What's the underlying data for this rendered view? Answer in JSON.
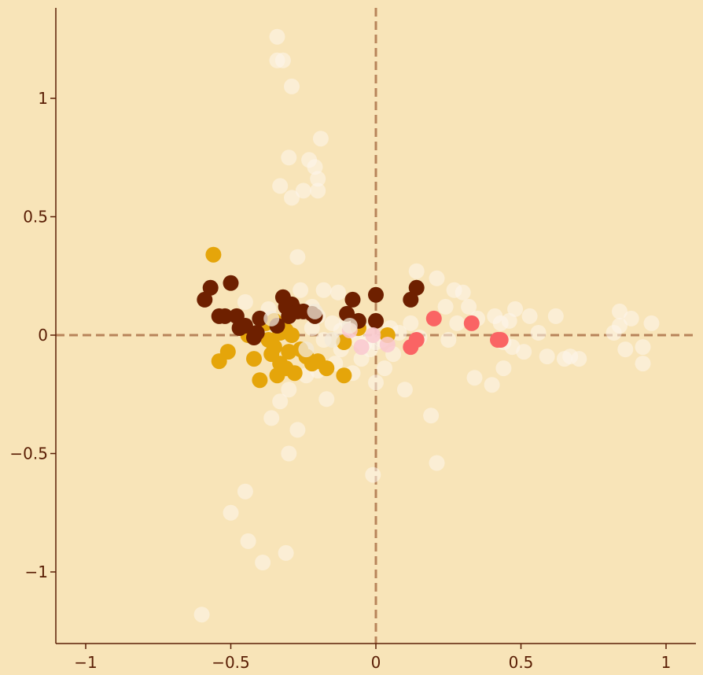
{
  "chart_data": {
    "type": "scatter",
    "title": "",
    "xlabel": "",
    "ylabel": "",
    "xlim": [
      -1.1,
      1.1
    ],
    "ylim": [
      -1.3,
      1.38
    ],
    "grid": false,
    "reference_lines": {
      "x": 0,
      "y": 0
    },
    "x_ticks": [
      {
        "value": -1,
        "label": "−1"
      },
      {
        "value": -0.5,
        "label": "−0.5"
      },
      {
        "value": 0,
        "label": "0"
      },
      {
        "value": 0.5,
        "label": "0.5"
      },
      {
        "value": 1,
        "label": "1"
      }
    ],
    "y_ticks": [
      {
        "value": 1,
        "label": "1"
      },
      {
        "value": 0.5,
        "label": "0.5"
      },
      {
        "value": 0,
        "label": "0"
      },
      {
        "value": -0.5,
        "label": "−0.5"
      },
      {
        "value": -1,
        "label": "−1"
      }
    ],
    "colors": {
      "background": "#f8e4b8",
      "axis": "#5a1e05",
      "reference_line": "#b8845a"
    },
    "series": [
      {
        "color": "#fdf6ec",
        "opacity": 0.55,
        "points": [
          [
            -0.34,
            1.26
          ],
          [
            -0.34,
            1.16
          ],
          [
            -0.32,
            1.16
          ],
          [
            -0.29,
            1.05
          ],
          [
            -0.19,
            0.83
          ],
          [
            -0.3,
            0.75
          ],
          [
            -0.23,
            0.74
          ],
          [
            -0.21,
            0.71
          ],
          [
            -0.2,
            0.66
          ],
          [
            -0.33,
            0.63
          ],
          [
            -0.25,
            0.61
          ],
          [
            -0.29,
            0.58
          ],
          [
            -0.2,
            0.61
          ],
          [
            -0.27,
            0.33
          ],
          [
            -0.26,
            0.19
          ],
          [
            -0.18,
            0.19
          ],
          [
            -0.13,
            0.18
          ],
          [
            -0.45,
            0.14
          ],
          [
            -0.37,
            0.11
          ],
          [
            -0.22,
            0.12
          ],
          [
            -0.2,
            0.08
          ],
          [
            -0.15,
            0.05
          ],
          [
            -0.12,
            0.02
          ],
          [
            -0.1,
            0.06
          ],
          [
            -0.08,
            0.02
          ],
          [
            -0.06,
            -0.02
          ],
          [
            -0.04,
            -0.04
          ],
          [
            -0.02,
            -0.06
          ],
          [
            0.02,
            -0.02
          ],
          [
            0.05,
            0.03
          ],
          [
            0.08,
            0.01
          ],
          [
            0.12,
            0.05
          ],
          [
            0.14,
            0.27
          ],
          [
            0.21,
            0.24
          ],
          [
            0.24,
            0.12
          ],
          [
            0.27,
            0.19
          ],
          [
            0.3,
            0.18
          ],
          [
            0.32,
            0.12
          ],
          [
            0.28,
            0.05
          ],
          [
            0.25,
            -0.02
          ],
          [
            0.35,
            0.07
          ],
          [
            0.41,
            0.08
          ],
          [
            0.43,
            0.05
          ],
          [
            0.46,
            0.06
          ],
          [
            0.48,
            0.11
          ],
          [
            0.53,
            0.08
          ],
          [
            0.56,
            0.01
          ],
          [
            0.62,
            0.08
          ],
          [
            0.44,
            -0.03
          ],
          [
            0.47,
            -0.05
          ],
          [
            0.51,
            -0.07
          ],
          [
            0.59,
            -0.09
          ],
          [
            0.65,
            -0.1
          ],
          [
            0.67,
            -0.09
          ],
          [
            0.7,
            -0.1
          ],
          [
            0.44,
            -0.14
          ],
          [
            0.34,
            -0.18
          ],
          [
            0.4,
            -0.21
          ],
          [
            0.1,
            -0.23
          ],
          [
            0.19,
            -0.34
          ],
          [
            0.21,
            -0.54
          ],
          [
            -0.01,
            -0.59
          ],
          [
            -0.17,
            -0.27
          ],
          [
            -0.3,
            -0.23
          ],
          [
            -0.33,
            -0.28
          ],
          [
            -0.36,
            -0.35
          ],
          [
            -0.27,
            -0.4
          ],
          [
            -0.3,
            -0.5
          ],
          [
            -0.45,
            -0.66
          ],
          [
            -0.5,
            -0.75
          ],
          [
            -0.44,
            -0.87
          ],
          [
            -0.39,
            -0.96
          ],
          [
            -0.31,
            -0.92
          ],
          [
            -0.6,
            -1.18
          ],
          [
            -0.24,
            -0.17
          ],
          [
            -0.2,
            -0.15
          ],
          [
            -0.14,
            -0.12
          ],
          [
            -0.08,
            -0.16
          ],
          [
            -0.05,
            -0.1
          ],
          [
            0.0,
            -0.2
          ],
          [
            0.03,
            -0.14
          ],
          [
            0.06,
            -0.08
          ],
          [
            0.15,
            -0.01
          ],
          [
            0.82,
            0.01
          ],
          [
            0.84,
            0.1
          ],
          [
            0.88,
            0.07
          ],
          [
            0.84,
            0.04
          ],
          [
            0.95,
            0.05
          ],
          [
            0.86,
            -0.06
          ],
          [
            0.92,
            -0.05
          ],
          [
            0.92,
            -0.12
          ],
          [
            -0.12,
            -0.06
          ],
          [
            -0.18,
            -0.02
          ],
          [
            -0.22,
            0.03
          ],
          [
            -0.02,
            0.02
          ],
          [
            0.0,
            -0.03
          ]
        ]
      },
      {
        "color": "#e5a50a",
        "opacity": 1,
        "points": [
          [
            -0.56,
            0.34
          ],
          [
            -0.51,
            -0.07
          ],
          [
            -0.54,
            -0.11
          ],
          [
            -0.42,
            -0.1
          ],
          [
            -0.4,
            -0.19
          ],
          [
            -0.44,
            0.0
          ],
          [
            -0.38,
            0.05
          ],
          [
            -0.37,
            -0.02
          ],
          [
            -0.36,
            -0.08
          ],
          [
            -0.35,
            -0.05
          ],
          [
            -0.33,
            -0.12
          ],
          [
            -0.34,
            -0.17
          ],
          [
            -0.31,
            -0.14
          ],
          [
            -0.3,
            -0.07
          ],
          [
            -0.28,
            -0.16
          ],
          [
            -0.26,
            -0.06
          ],
          [
            -0.24,
            -0.09
          ],
          [
            -0.22,
            -0.12
          ],
          [
            -0.2,
            -0.11
          ],
          [
            -0.17,
            -0.14
          ],
          [
            -0.11,
            -0.17
          ],
          [
            -0.11,
            -0.03
          ],
          [
            -0.06,
            0.03
          ],
          [
            0.04,
            0.0
          ],
          [
            -0.31,
            0.02
          ],
          [
            -0.33,
            0.01
          ],
          [
            -0.29,
            0.0
          ],
          [
            -0.35,
            0.06
          ]
        ]
      },
      {
        "color": "#6e2000",
        "opacity": 1,
        "points": [
          [
            -0.59,
            0.15
          ],
          [
            -0.57,
            0.2
          ],
          [
            -0.54,
            0.08
          ],
          [
            -0.52,
            0.08
          ],
          [
            -0.5,
            0.22
          ],
          [
            -0.48,
            0.08
          ],
          [
            -0.47,
            0.03
          ],
          [
            -0.45,
            0.04
          ],
          [
            -0.42,
            -0.01
          ],
          [
            -0.41,
            0.01
          ],
          [
            -0.4,
            0.07
          ],
          [
            -0.34,
            0.04
          ],
          [
            -0.32,
            0.16
          ],
          [
            -0.31,
            0.12
          ],
          [
            -0.3,
            0.08
          ],
          [
            -0.29,
            0.13
          ],
          [
            -0.27,
            0.1
          ],
          [
            -0.25,
            0.1
          ],
          [
            -0.22,
            0.09
          ],
          [
            -0.21,
            0.08
          ],
          [
            -0.1,
            0.09
          ],
          [
            -0.08,
            0.15
          ],
          [
            -0.06,
            0.06
          ],
          [
            0.0,
            0.06
          ],
          [
            0.0,
            0.17
          ],
          [
            0.12,
            0.15
          ],
          [
            0.14,
            0.2
          ]
        ]
      },
      {
        "color": "#fa6464",
        "opacity": 1,
        "points": [
          [
            0.2,
            0.07
          ],
          [
            0.33,
            0.05
          ],
          [
            0.14,
            -0.02
          ],
          [
            0.12,
            -0.05
          ],
          [
            0.42,
            -0.02
          ],
          [
            0.43,
            -0.02
          ]
        ]
      },
      {
        "color": "#f9c8cf",
        "opacity": 0.85,
        "points": [
          [
            -0.09,
            0.02
          ],
          [
            -0.05,
            -0.05
          ],
          [
            0.04,
            -0.04
          ],
          [
            -0.01,
            0.0
          ]
        ]
      },
      {
        "color": "#f3ead8",
        "opacity": 0.75,
        "points": [
          [
            -0.24,
            -0.06
          ],
          [
            -0.21,
            0.1
          ],
          [
            -0.36,
            0.07
          ],
          [
            -0.15,
            -0.02
          ],
          [
            -0.09,
            0.04
          ]
        ]
      }
    ]
  }
}
